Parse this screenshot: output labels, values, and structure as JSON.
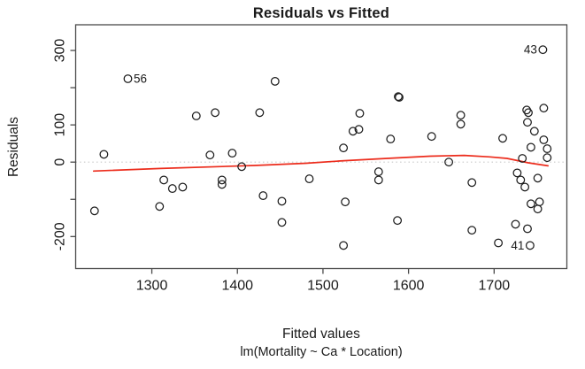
{
  "figure": {
    "title": "Residuals vs Fitted",
    "xlabel": "Fitted values",
    "sub_xlabel": "lm(Mortality ~ Ca * Location)",
    "ylabel": "Residuals"
  },
  "chart_data": {
    "type": "scatter",
    "title": "Residuals vs Fitted",
    "xlabel": "Fitted values",
    "sub_xlabel": "lm(Mortality ~ Ca * Location)",
    "ylabel": "Residuals",
    "xlim": [
      1211,
      1785
    ],
    "ylim": [
      -286,
      369
    ],
    "x_ticks": [
      1300,
      1400,
      1500,
      1600,
      1700
    ],
    "y_ticks": [
      -200,
      -100,
      0,
      100,
      200,
      300
    ],
    "y_tick_labels": [
      "-200",
      "",
      "0",
      "100",
      "",
      "300"
    ],
    "grid": false,
    "legend": null,
    "point_style": {
      "shape": "open-circle",
      "color": "#1c1c1c",
      "radius_px": 4.3
    },
    "zero_line": {
      "y": 0,
      "style": "dotted",
      "color": "#c9c9c9"
    },
    "points": [
      [
        1233,
        -131
      ],
      [
        1244,
        21
      ],
      [
        1272,
        224
      ],
      [
        1309,
        -119
      ],
      [
        1314,
        -48
      ],
      [
        1324,
        -71
      ],
      [
        1336,
        -67
      ],
      [
        1352,
        124
      ],
      [
        1368,
        19
      ],
      [
        1374,
        133
      ],
      [
        1382,
        -48
      ],
      [
        1382,
        -60
      ],
      [
        1394,
        24
      ],
      [
        1405,
        -12
      ],
      [
        1426,
        133
      ],
      [
        1430,
        -90
      ],
      [
        1444,
        217
      ],
      [
        1452,
        -105
      ],
      [
        1452,
        -162
      ],
      [
        1484,
        -45
      ],
      [
        1524,
        38
      ],
      [
        1524,
        -224
      ],
      [
        1526,
        -107
      ],
      [
        1535,
        83
      ],
      [
        1542,
        88
      ],
      [
        1543,
        131
      ],
      [
        1565,
        -26
      ],
      [
        1565,
        -48
      ],
      [
        1579,
        62
      ],
      [
        1588,
        176
      ],
      [
        1589,
        174
      ],
      [
        1587,
        -157
      ],
      [
        1627,
        69
      ],
      [
        1647,
        0
      ],
      [
        1661,
        126
      ],
      [
        1661,
        102
      ],
      [
        1674,
        -55
      ],
      [
        1674,
        -183
      ],
      [
        1705,
        -217
      ],
      [
        1710,
        64
      ],
      [
        1727,
        -29
      ],
      [
        1731,
        -48
      ],
      [
        1736,
        -67
      ],
      [
        1738,
        140
      ],
      [
        1740,
        133
      ],
      [
        1739,
        107
      ],
      [
        1742,
        -224
      ],
      [
        1743,
        40
      ],
      [
        1743,
        -112
      ],
      [
        1747,
        83
      ],
      [
        1751,
        -43
      ],
      [
        1753,
        -107
      ],
      [
        1751,
        -126
      ],
      [
        1757,
        302
      ],
      [
        1758,
        145
      ],
      [
        1758,
        60
      ],
      [
        1762,
        36
      ],
      [
        1762,
        12
      ],
      [
        1733,
        10
      ],
      [
        1725,
        -167
      ],
      [
        1739,
        -179
      ]
    ],
    "labeled_points": [
      {
        "label": "56",
        "x": 1272,
        "y": 224,
        "side": "right"
      },
      {
        "label": "43",
        "x": 1757,
        "y": 302,
        "side": "left"
      },
      {
        "label": "41",
        "x": 1742,
        "y": -224,
        "side": "left"
      }
    ],
    "smooth_line": {
      "name": "lowess",
      "color": "#ec2c1c",
      "points": [
        [
          1232,
          -24
        ],
        [
          1310,
          -17
        ],
        [
          1420,
          -9
        ],
        [
          1480,
          -3
        ],
        [
          1520,
          3
        ],
        [
          1575,
          10
        ],
        [
          1625,
          16
        ],
        [
          1665,
          18
        ],
        [
          1695,
          14
        ],
        [
          1715,
          10
        ],
        [
          1740,
          -2
        ],
        [
          1763,
          -10
        ]
      ]
    }
  }
}
